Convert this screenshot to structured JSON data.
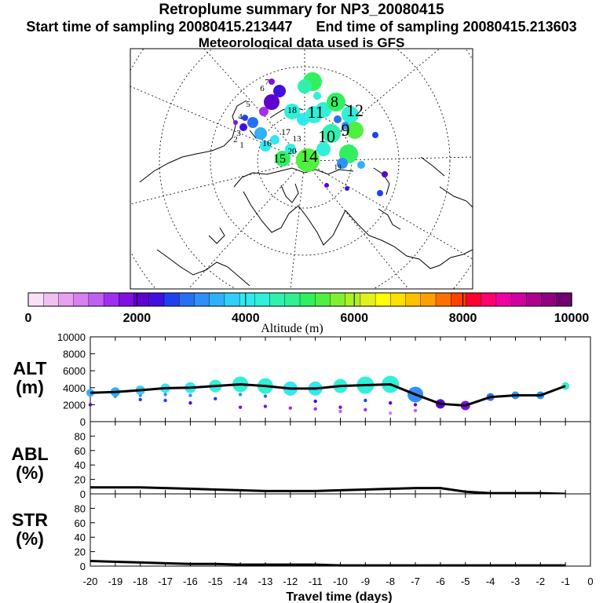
{
  "titles": {
    "main": "Retroplume summary for NP3_20080415",
    "start": "Start time of sampling 20080415.213447",
    "end": "End time of sampling 20080415.213603",
    "met": "Meteorological data used is GFS"
  },
  "colorbar": {
    "label": "Altitude (m)",
    "ticks": [
      "0",
      "2000",
      "4000",
      "6000",
      "8000",
      "10000"
    ],
    "colors": [
      "#f8e0f8",
      "#f0c0f0",
      "#e8a0f0",
      "#d880f0",
      "#c060f0",
      "#a030f0",
      "#8010e0",
      "#6000d0",
      "#4010e0",
      "#2040f0",
      "#2870f0",
      "#3090f8",
      "#30b0f8",
      "#30d0f8",
      "#30e8f0",
      "#30f0d8",
      "#30f0b0",
      "#30f090",
      "#30f060",
      "#50f040",
      "#80f030",
      "#b0f020",
      "#e0f020",
      "#ffff00",
      "#ffe000",
      "#ffc000",
      "#ffa000",
      "#ff7000",
      "#ff4000",
      "#ff0030",
      "#ff0070",
      "#f000a0",
      "#d000a0",
      "#b00090",
      "#900080",
      "#700070"
    ]
  },
  "map": {
    "labels": [
      "1",
      "2",
      "3",
      "4",
      "5",
      "6",
      "7",
      "8",
      "9",
      "10",
      "11",
      "12",
      "13",
      "14",
      "15",
      "16",
      "17",
      "18",
      "19",
      "20"
    ]
  },
  "panels": {
    "alt": {
      "label_line1": "ALT",
      "label_line2": "(m)",
      "ticks": [
        "10000",
        "8000",
        "6000",
        "4000",
        "2000",
        "0"
      ]
    },
    "abl": {
      "label_line1": "ABL",
      "label_line2": "(%)",
      "ticks": [
        "80",
        "60",
        "40",
        "20",
        "0"
      ]
    },
    "str": {
      "label_line1": "STR",
      "label_line2": "(%)",
      "ticks": [
        "80",
        "60",
        "40",
        "20",
        "0"
      ]
    }
  },
  "chart_data": {
    "type": "line",
    "title": "Retroplume summary for NP3_20080415",
    "xlabel": "Travel time (days)",
    "x": [
      -20,
      -19,
      -18,
      -17,
      -16,
      -15,
      -14,
      -13,
      -12,
      -11,
      -10,
      -9,
      -8,
      -7,
      -6,
      -5,
      -4,
      -3,
      -2,
      -1
    ],
    "xticks": [
      "-20",
      "-19",
      "-18",
      "-17",
      "-16",
      "-15",
      "-14",
      "-13",
      "-12",
      "-11",
      "-10",
      "-9",
      "-8",
      "-7",
      "-6",
      "-5",
      "-4",
      "-3",
      "-2",
      "-1",
      "0"
    ],
    "xlim": [
      -20,
      0
    ],
    "series": [
      {
        "name": "ALT (m)",
        "ylim": [
          0,
          10000
        ],
        "values": [
          3400,
          3500,
          3700,
          3950,
          4000,
          4200,
          4400,
          4200,
          3900,
          3900,
          4200,
          4300,
          4400,
          3200,
          2100,
          1900,
          2900,
          3100,
          3100,
          4200
        ],
        "bubble_sizes": [
          5,
          6,
          6,
          6,
          7,
          8,
          10,
          10,
          9,
          9,
          9,
          11,
          11,
          10,
          6,
          6,
          5,
          5,
          5,
          5
        ],
        "secondary_points": [
          [
            -20,
            2000
          ],
          [
            -19,
            3000
          ],
          [
            -18,
            2600
          ],
          [
            -18,
            3100
          ],
          [
            -17,
            2500
          ],
          [
            -17,
            3200
          ],
          [
            -16,
            2200
          ],
          [
            -16,
            3100
          ],
          [
            -15,
            2700
          ],
          [
            -14,
            1700
          ],
          [
            -14,
            3200
          ],
          [
            -13,
            1800
          ],
          [
            -13,
            3000
          ],
          [
            -12,
            1600
          ],
          [
            -12,
            3300
          ],
          [
            -11,
            1500
          ],
          [
            -11,
            2400
          ],
          [
            -10,
            1200
          ],
          [
            -10,
            1700
          ],
          [
            -9,
            1400
          ],
          [
            -9,
            2500
          ],
          [
            -8,
            1000
          ],
          [
            -8,
            2200
          ],
          [
            -7,
            1300
          ],
          [
            -7,
            2000
          ]
        ]
      },
      {
        "name": "ABL (%)",
        "ylim": [
          0,
          100
        ],
        "values": [
          9,
          9,
          9,
          8,
          7,
          6,
          5,
          4,
          4,
          4,
          5,
          6,
          7,
          8,
          8,
          3,
          1,
          1,
          1,
          0
        ]
      },
      {
        "name": "STR (%)",
        "ylim": [
          0,
          100
        ],
        "values": [
          7,
          6,
          5,
          4,
          3,
          3,
          2,
          2,
          2,
          2,
          1,
          1,
          1,
          1,
          1,
          1,
          1,
          1,
          1,
          1
        ]
      }
    ],
    "colorbar_range": [
      0,
      10000
    ]
  }
}
